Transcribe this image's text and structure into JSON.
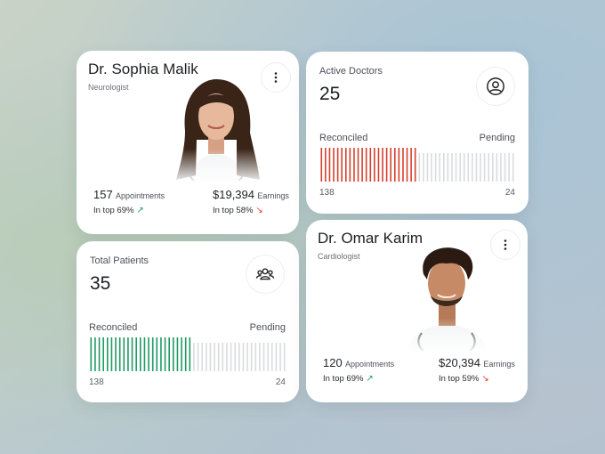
{
  "colors": {
    "reconciled_red": "#d8402c",
    "reconciled_green": "#1f9a63",
    "pending_gray": "#d9dcdf",
    "up": "#1b9e6a",
    "down": "#e0432b"
  },
  "doctor_cards": [
    {
      "name": "Dr. Sophia Malik",
      "role": "Neurologist",
      "menu_icon": "vertical-dots-icon",
      "appointments_value": "157",
      "appointments_label": "Appointments",
      "appointments_rank": "In top 69%",
      "appointments_trend": "up",
      "earnings_value": "$19,394",
      "earnings_label": "Earnings",
      "earnings_rank": "In top 58%",
      "earnings_trend": "down"
    },
    {
      "name": "Dr. Omar Karim",
      "role": "Cardiologist",
      "menu_icon": "vertical-dots-icon",
      "appointments_value": "120",
      "appointments_label": "Appointments",
      "appointments_rank": "In top 69%",
      "appointments_trend": "up",
      "earnings_value": "$20,394",
      "earnings_label": "Earnings",
      "earnings_rank": "In top 59%",
      "earnings_trend": "down"
    }
  ],
  "kpi_cards": [
    {
      "label": "Active Doctors",
      "value": "25",
      "icon": "user-circle-icon",
      "reconciled_label": "Reconciled",
      "pending_label": "Pending",
      "reconciled_count": "138",
      "pending_count": "24",
      "reconciled_fraction": 0.5,
      "color": "#d8402c"
    },
    {
      "label": "Total Patients",
      "value": "35",
      "icon": "users-group-icon",
      "reconciled_label": "Reconciled",
      "pending_label": "Pending",
      "reconciled_count": "138",
      "pending_count": "24",
      "reconciled_fraction": 0.52,
      "color": "#1f9a63"
    }
  ]
}
